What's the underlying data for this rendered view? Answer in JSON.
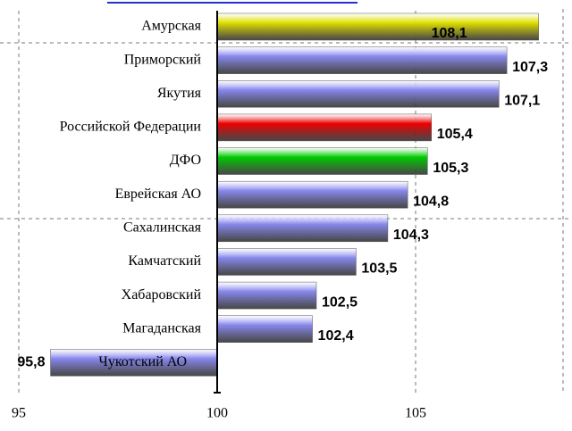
{
  "chart_data": {
    "type": "bar",
    "orientation": "horizontal",
    "categories": [
      "Амурская",
      "Приморский",
      "Якутия",
      "Российской Федерации",
      "ДФО",
      "Еврейская АО",
      "Сахалинская",
      "Камчатский",
      "Хабаровский",
      "Магаданская",
      "Чукотский АО"
    ],
    "values": [
      108.1,
      107.3,
      107.1,
      105.4,
      105.3,
      104.8,
      104.3,
      103.5,
      102.5,
      102.4,
      95.8
    ],
    "value_labels": [
      "108,1",
      "107,3",
      "107,1",
      "105,4",
      "105,3",
      "104,8",
      "104,3",
      "103,5",
      "102,5",
      "102,4",
      "95,8"
    ],
    "colors": [
      "#e0e000",
      "#8888ee",
      "#8888ee",
      "#ee0000",
      "#00cc00",
      "#8888ee",
      "#8888ee",
      "#8888ee",
      "#8888ee",
      "#8888ee",
      "#8888ee"
    ],
    "base": 100,
    "xlim": [
      95,
      109
    ],
    "xticks": [
      95,
      100,
      105
    ],
    "grid": true
  }
}
